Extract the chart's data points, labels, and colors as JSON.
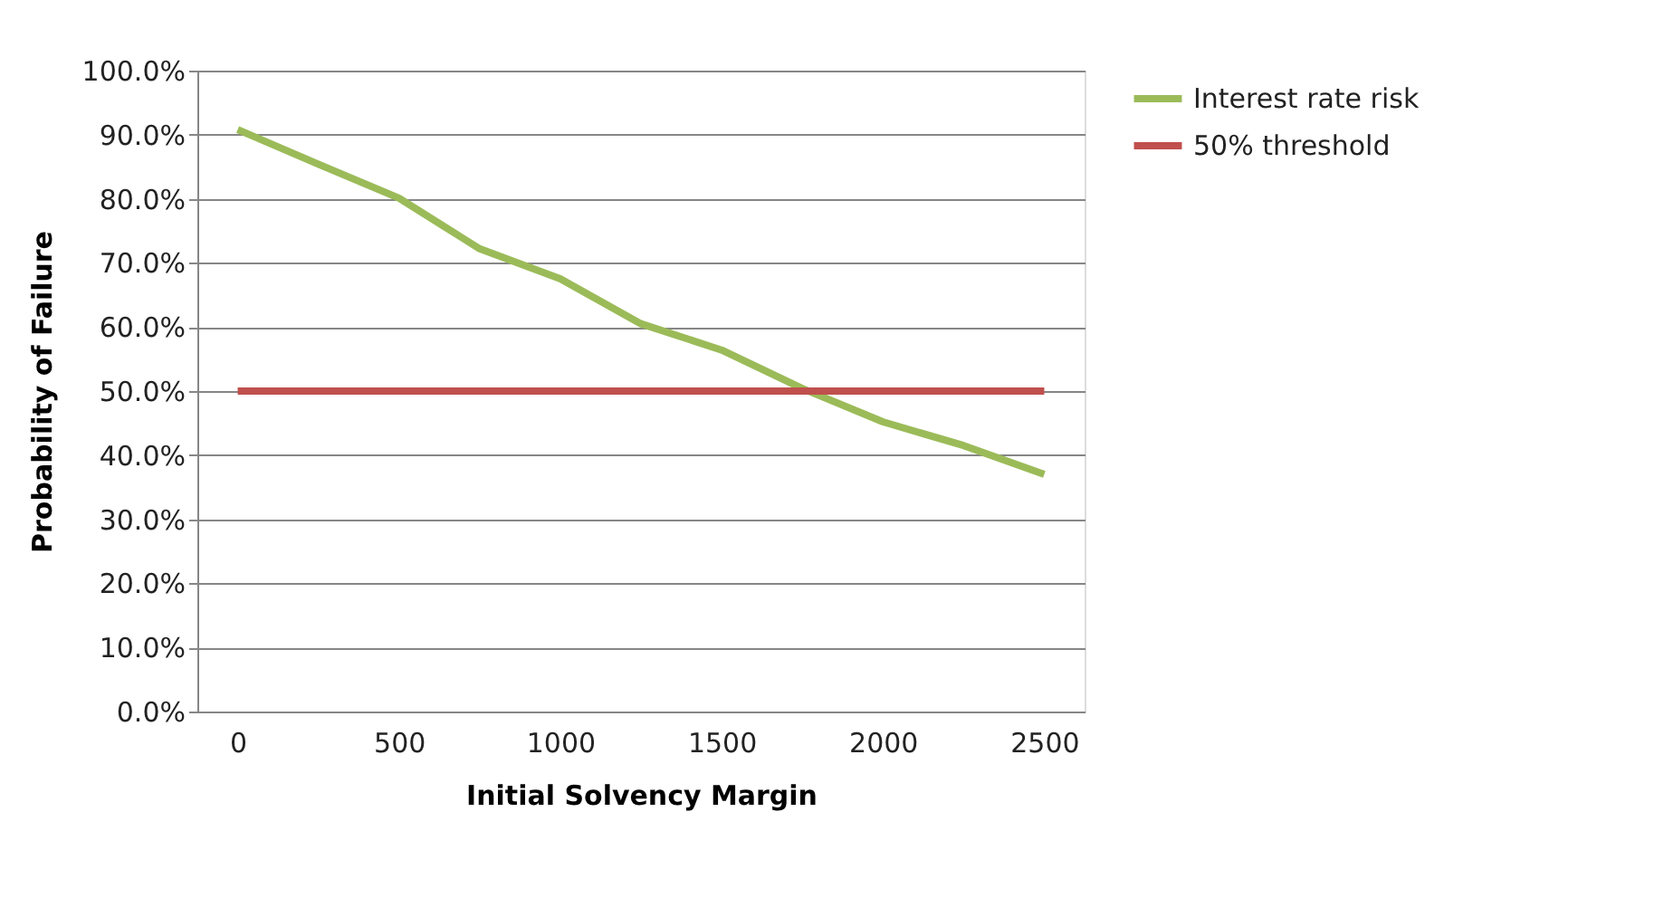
{
  "chart_data": {
    "type": "line",
    "xlabel": "Initial Solvency Margin",
    "ylabel": "Probability of Failure",
    "x": [
      0,
      250,
      500,
      750,
      1000,
      1250,
      1500,
      1750,
      2000,
      2250,
      2500
    ],
    "series": [
      {
        "name": "Interest rate risk",
        "color": "#9bbb59",
        "values": [
          90.8,
          85.4,
          80.1,
          72.2,
          67.5,
          60.5,
          56.4,
          50.4,
          45.2,
          41.5,
          37.0
        ]
      },
      {
        "name": "50% threshold",
        "color": "#c0504d",
        "values": [
          50,
          50,
          50,
          50,
          50,
          50,
          50,
          50,
          50,
          50,
          50
        ]
      }
    ],
    "xlim": [
      -125,
      2625
    ],
    "xticks": [
      0,
      500,
      1000,
      1500,
      2000,
      2500
    ],
    "ylim": [
      0,
      100
    ],
    "yticks": [
      {
        "value": 0,
        "label": "0.0%"
      },
      {
        "value": 10,
        "label": "10.0%"
      },
      {
        "value": 20,
        "label": "20.0%"
      },
      {
        "value": 30,
        "label": "30.0%"
      },
      {
        "value": 40,
        "label": "40.0%"
      },
      {
        "value": 50,
        "label": "50.0%"
      },
      {
        "value": 60,
        "label": "60.0%"
      },
      {
        "value": 70,
        "label": "70.0%"
      },
      {
        "value": 80,
        "label": "80.0%"
      },
      {
        "value": 90,
        "label": "90.0%"
      },
      {
        "value": 100,
        "label": "100.0%"
      }
    ],
    "grid": "y",
    "legend": "right",
    "marker": "none",
    "line_style": "solid"
  }
}
